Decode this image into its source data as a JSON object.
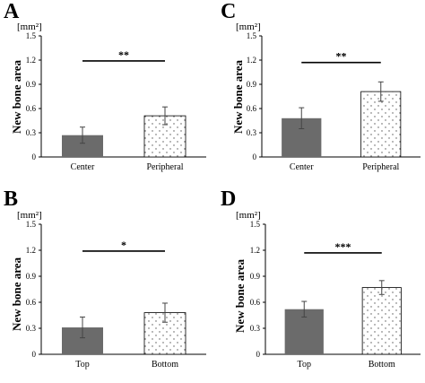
{
  "chart_data": [
    {
      "panel": "A",
      "type": "bar",
      "unit": "[mm²]",
      "ylabel": "New bone area",
      "ylim": [
        0,
        1.5
      ],
      "yticks": [
        "0",
        "0.3",
        "0.6",
        "0.9",
        "1.2",
        "1.5"
      ],
      "categories": [
        "Center",
        "Peripheral"
      ],
      "values": [
        0.27,
        0.51
      ],
      "errors": [
        0.1,
        0.11
      ],
      "significance": "**",
      "significance_level": 1.19
    },
    {
      "panel": "C",
      "type": "bar",
      "unit": "[mm²]",
      "ylabel": "New bone area",
      "ylim": [
        0,
        1.5
      ],
      "yticks": [
        "0",
        "0.3",
        "0.6",
        "0.9",
        "1.2",
        "1.5"
      ],
      "categories": [
        "Center",
        "Peripheral"
      ],
      "values": [
        0.48,
        0.81
      ],
      "errors": [
        0.13,
        0.12
      ],
      "significance": "**",
      "significance_level": 1.17
    },
    {
      "panel": "B",
      "type": "bar",
      "unit": "[mm²]",
      "ylabel": "New bone area",
      "ylim": [
        0,
        1.5
      ],
      "yticks": [
        "0",
        "0.3",
        "0.6",
        "0.9",
        "1.2",
        "1.5"
      ],
      "categories": [
        "Top",
        "Bottom"
      ],
      "values": [
        0.31,
        0.48
      ],
      "errors": [
        0.12,
        0.11
      ],
      "significance": "*",
      "significance_level": 1.19
    },
    {
      "panel": "D",
      "type": "bar",
      "unit": "[mm²]",
      "ylabel": "New bone area",
      "ylim": [
        0,
        1.5
      ],
      "yticks": [
        "0",
        "0.3",
        "0.6",
        "0.9",
        "1.2",
        "1.5"
      ],
      "categories": [
        "Top",
        "Bottom"
      ],
      "values": [
        0.52,
        0.77
      ],
      "errors": [
        0.09,
        0.08
      ],
      "significance": "***",
      "significance_level": 1.17
    }
  ],
  "colors": {
    "first_bar": "#6b6b6b",
    "second_bar_fill": "#ffffff",
    "second_bar_dots": "#555555",
    "axis": "#000000"
  }
}
